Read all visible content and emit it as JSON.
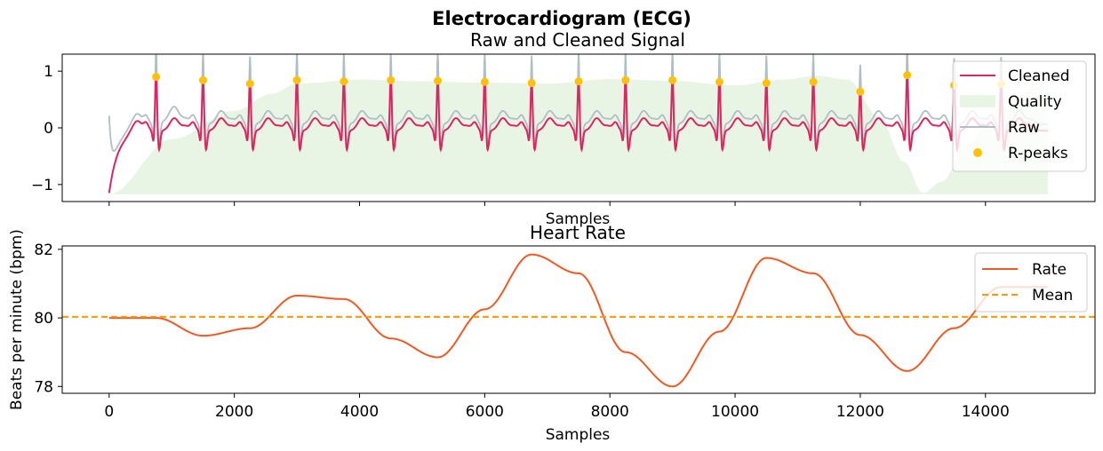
{
  "figure": {
    "suptitle": "Electrocardiogram (ECG)"
  },
  "chart_data": [
    {
      "type": "line",
      "title": "Raw and Cleaned Signal",
      "xlabel": "Samples",
      "ylabel": "",
      "xlim": [
        -750,
        15750
      ],
      "ylim": [
        -1.3,
        1.3
      ],
      "yticks": [
        -1,
        0,
        1
      ],
      "ytick_labels": [
        "−1",
        "0",
        "1"
      ],
      "xticks": [
        0,
        2000,
        4000,
        6000,
        8000,
        10000,
        12000,
        14000
      ],
      "show_xtick_labels": false,
      "legend": {
        "placement": "top-right",
        "entries": [
          {
            "label": "Cleaned",
            "color": "#e0245e",
            "kind": "line"
          },
          {
            "label": "Quality",
            "color": "#e8f4e4",
            "kind": "patch"
          },
          {
            "label": "Raw",
            "color": "#aebfc7",
            "kind": "line"
          },
          {
            "label": "R-peaks",
            "color": "#ffc107",
            "kind": "marker"
          }
        ]
      },
      "colors": {
        "cleaned": "#e0245e",
        "raw": "#aebfc7",
        "quality": "#e8f4e4",
        "rpeaks": "#ffc107"
      },
      "quality": {
        "baseline": -1.17,
        "x": [
          0,
          1000,
          2000,
          2600,
          3000,
          4000,
          5000,
          6000,
          7000,
          8000,
          9000,
          10000,
          10800,
          11300,
          11800,
          12300,
          12700,
          13000,
          13300,
          13700,
          14200,
          14900,
          15000
        ],
        "y": [
          -1.17,
          -0.2,
          0.3,
          0.6,
          0.78,
          0.85,
          0.82,
          0.8,
          0.78,
          0.86,
          0.83,
          0.75,
          0.85,
          0.92,
          0.85,
          0.2,
          -0.6,
          -1.15,
          -0.95,
          -0.3,
          0.35,
          0.75,
          0.75
        ]
      },
      "rpeaks": {
        "x": [
          750,
          1500,
          2250,
          3000,
          3750,
          4500,
          5250,
          6000,
          6750,
          7500,
          8250,
          9000,
          9750,
          10500,
          11250,
          12000,
          12750,
          13500,
          14250
        ],
        "y": [
          0.9,
          0.84,
          0.78,
          0.84,
          0.82,
          0.84,
          0.83,
          0.81,
          0.79,
          0.82,
          0.84,
          0.84,
          0.81,
          0.79,
          0.81,
          0.64,
          0.93,
          0.75,
          0.77
        ]
      },
      "signal": {
        "start": 0,
        "end": 15000
      }
    },
    {
      "type": "line",
      "title": "Heart Rate",
      "xlabel": "Samples",
      "ylabel": "Beats per minute (bpm)",
      "xlim": [
        -750,
        15750
      ],
      "ylim": [
        77.8,
        82.1
      ],
      "yticks": [
        78,
        80,
        82
      ],
      "xticks": [
        0,
        2000,
        4000,
        6000,
        8000,
        10000,
        12000,
        14000
      ],
      "legend": {
        "placement": "top-right",
        "entries": [
          {
            "label": "Rate",
            "color": "#f05a22",
            "kind": "line"
          },
          {
            "label": "Mean",
            "color": "#ff9800",
            "kind": "dashed"
          }
        ]
      },
      "mean": 80.03,
      "series": [
        {
          "name": "Rate",
          "x": [
            0,
            750,
            1500,
            2250,
            3000,
            3750,
            4500,
            5250,
            6000,
            6750,
            7500,
            8250,
            9000,
            9750,
            10500,
            11250,
            12000,
            12750,
            13500,
            14250,
            15000
          ],
          "values": [
            80.0,
            80.0,
            79.48,
            79.7,
            80.65,
            80.55,
            79.4,
            78.85,
            80.25,
            81.85,
            81.3,
            79.0,
            78.0,
            79.6,
            81.75,
            81.3,
            79.5,
            78.45,
            79.7,
            80.9,
            80.9
          ]
        }
      ]
    }
  ]
}
